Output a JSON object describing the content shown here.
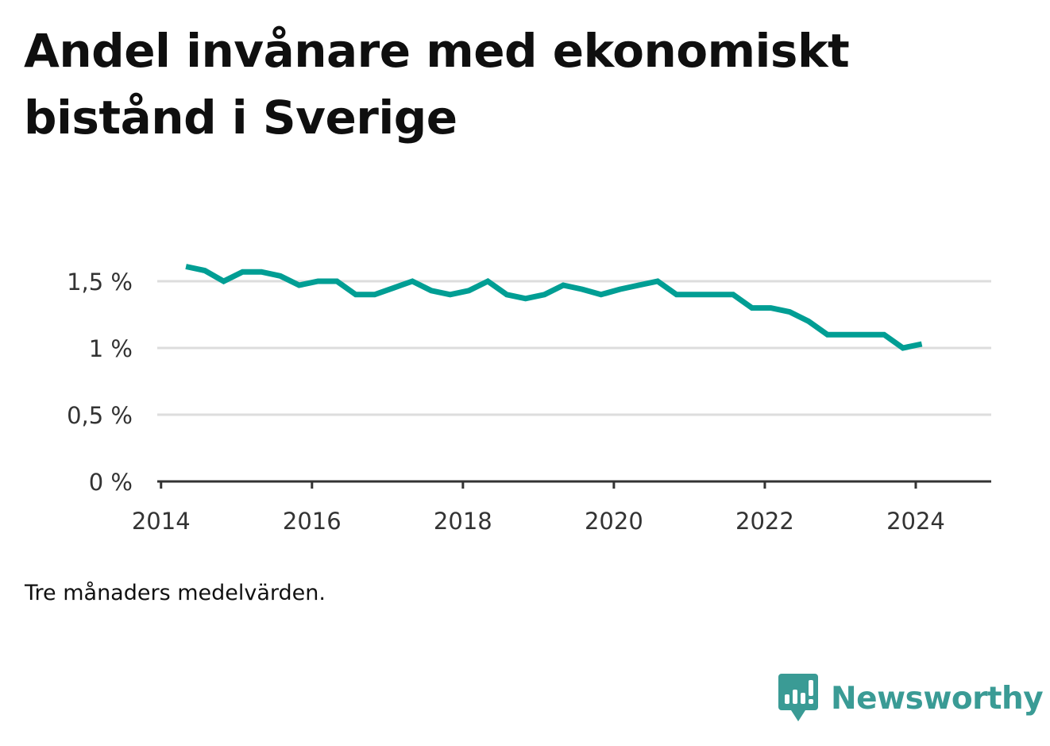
{
  "title": "Andel invånare med ekonomiskt bistånd i Sverige",
  "note": "Tre månaders medelvärden.",
  "brand": {
    "name": "Newsworthy",
    "icon": "bar-chart-speech-bubble-icon",
    "color": "#3a9b95"
  },
  "chart_data": {
    "type": "line",
    "title": "Andel invånare med ekonomiskt bistånd i Sverige",
    "xlabel": "",
    "ylabel": "",
    "xlim": [
      2013.95,
      2025.0
    ],
    "ylim": [
      0,
      1.5
    ],
    "x_ticks": [
      2014,
      2016,
      2018,
      2020,
      2022,
      2024
    ],
    "x_tick_labels": [
      "2014",
      "2016",
      "2018",
      "2020",
      "2022",
      "2024"
    ],
    "y_ticks": [
      0,
      0.5,
      1,
      1.5
    ],
    "y_tick_labels": [
      "0 %",
      "0,5 %",
      "1 %",
      "1,5 %"
    ],
    "grid": true,
    "line_color": "#009e94",
    "series": [
      {
        "x": [
          2014.33,
          2014.58,
          2014.83,
          2015.08,
          2015.33,
          2015.58,
          2015.83,
          2016.08,
          2016.33,
          2016.58,
          2016.83,
          2017.08,
          2017.33,
          2017.58,
          2017.83,
          2018.08,
          2018.33,
          2018.58,
          2018.83,
          2019.08,
          2019.33,
          2019.58,
          2019.83,
          2020.08,
          2020.33,
          2020.58,
          2020.83,
          2021.08,
          2021.33,
          2021.58,
          2021.83,
          2022.08,
          2022.33,
          2022.58,
          2022.83,
          2023.08,
          2023.33,
          2023.58,
          2023.83,
          2024.08
        ],
        "y": [
          1.61,
          1.58,
          1.5,
          1.57,
          1.57,
          1.54,
          1.47,
          1.5,
          1.5,
          1.4,
          1.4,
          1.45,
          1.5,
          1.43,
          1.4,
          1.43,
          1.5,
          1.4,
          1.37,
          1.4,
          1.47,
          1.44,
          1.4,
          1.44,
          1.47,
          1.5,
          1.4,
          1.4,
          1.4,
          1.4,
          1.3,
          1.3,
          1.27,
          1.2,
          1.1,
          1.1,
          1.1,
          1.1,
          1.0,
          1.03
        ]
      }
    ]
  }
}
